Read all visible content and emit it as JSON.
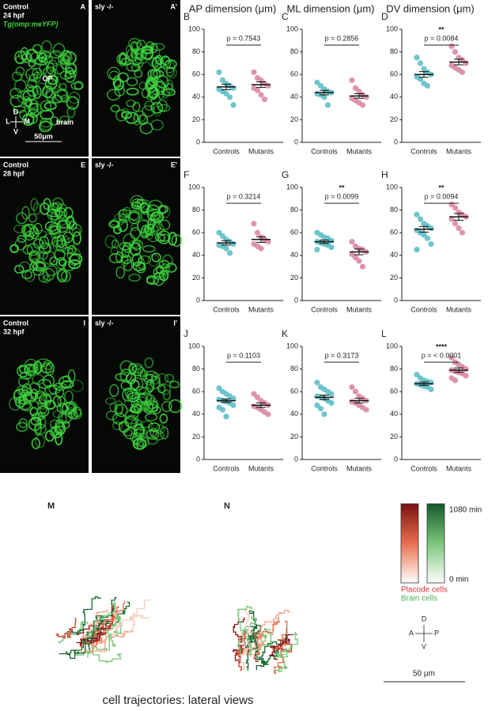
{
  "images": [
    {
      "label": "A",
      "lines": [
        "Control",
        "24 hpf",
        "Tg(omp:meYFP)"
      ],
      "annotations": [
        "OP",
        "brain",
        "D",
        "L",
        "M",
        "V",
        "50μm"
      ]
    },
    {
      "label": "A'",
      "lines": [
        "sly -/-"
      ]
    },
    {
      "label": "E",
      "lines": [
        "Control",
        "28 hpf"
      ]
    },
    {
      "label": "E'",
      "lines": [
        "sly -/-"
      ]
    },
    {
      "label": "I",
      "lines": [
        "Control",
        "32 hpf"
      ]
    },
    {
      "label": "I'",
      "lines": [
        "sly -/-"
      ]
    }
  ],
  "chart_data": [
    {
      "type": "strip",
      "panel": "B",
      "title": "AP dimension (μm)",
      "annotation": "p = 0.7543",
      "categories": [
        "Controls",
        "Mutants"
      ],
      "ylim": [
        0,
        100
      ],
      "yticks": [
        0,
        20,
        40,
        60,
        80,
        100
      ],
      "means": [
        49,
        51
      ],
      "sem": [
        2.5,
        2.5
      ],
      "series": [
        {
          "name": "Controls",
          "color": "#5fbfc6",
          "values": [
            62,
            55,
            52,
            50,
            48,
            47,
            45,
            43,
            40,
            33
          ]
        },
        {
          "name": "Mutants",
          "color": "#d98aa6",
          "values": [
            62,
            57,
            55,
            52,
            50,
            48,
            46,
            42,
            38
          ]
        }
      ]
    },
    {
      "type": "strip",
      "panel": "C",
      "title": "ML dimension (μm)",
      "annotation": "p = 0.2856",
      "categories": [
        "Controls",
        "Mutants"
      ],
      "ylim": [
        0,
        100
      ],
      "yticks": [
        0,
        20,
        40,
        60,
        80,
        100
      ],
      "means": [
        44,
        41
      ],
      "sem": [
        2,
        2
      ],
      "series": [
        {
          "name": "Controls",
          "color": "#5fbfc6",
          "values": [
            53,
            50,
            47,
            45,
            44,
            43,
            42,
            40,
            33
          ]
        },
        {
          "name": "Mutants",
          "color": "#d98aa6",
          "values": [
            55,
            48,
            45,
            42,
            40,
            39,
            37,
            35,
            33
          ]
        }
      ]
    },
    {
      "type": "strip",
      "panel": "D",
      "title": "DV dimension (μm)",
      "stars": "**",
      "annotation": "p = 0.0084",
      "categories": [
        "Controls",
        "Mutants"
      ],
      "ylim": [
        0,
        100
      ],
      "yticks": [
        0,
        20,
        40,
        60,
        80,
        100
      ],
      "means": [
        60,
        71
      ],
      "sem": [
        2.5,
        2.5
      ],
      "series": [
        {
          "name": "Controls",
          "color": "#5fbfc6",
          "values": [
            75,
            70,
            65,
            62,
            60,
            58,
            56,
            52,
            50
          ]
        },
        {
          "name": "Mutants",
          "color": "#d98aa6",
          "values": [
            85,
            80,
            75,
            73,
            70,
            68,
            66,
            64,
            62
          ]
        }
      ]
    },
    {
      "type": "strip",
      "panel": "F",
      "annotation": "p = 0.3214",
      "categories": [
        "Controls",
        "Mutants"
      ],
      "ylim": [
        0,
        100
      ],
      "yticks": [
        0,
        20,
        40,
        60,
        80,
        100
      ],
      "means": [
        51,
        54
      ],
      "sem": [
        2,
        2.5
      ],
      "series": [
        {
          "name": "Controls",
          "color": "#5fbfc6",
          "values": [
            60,
            57,
            54,
            52,
            50,
            49,
            48,
            46,
            42
          ]
        },
        {
          "name": "Mutants",
          "color": "#d98aa6",
          "values": [
            68,
            60,
            56,
            54,
            52,
            50,
            48,
            46
          ]
        }
      ]
    },
    {
      "type": "strip",
      "panel": "G",
      "stars": "**",
      "annotation": "p = 0.0099",
      "categories": [
        "Controls",
        "Mutants"
      ],
      "ylim": [
        0,
        100
      ],
      "yticks": [
        0,
        20,
        40,
        60,
        80,
        100
      ],
      "means": [
        52,
        43
      ],
      "sem": [
        1.5,
        2.5
      ],
      "series": [
        {
          "name": "Controls",
          "color": "#5fbfc6",
          "values": [
            60,
            58,
            56,
            55,
            53,
            52,
            51,
            50,
            49,
            47,
            45
          ]
        },
        {
          "name": "Mutants",
          "color": "#d98aa6",
          "values": [
            52,
            48,
            46,
            45,
            43,
            41,
            38,
            35,
            30
          ]
        }
      ]
    },
    {
      "type": "strip",
      "panel": "H",
      "stars": "**",
      "annotation": "p = 0.0094",
      "categories": [
        "Controls",
        "Mutants"
      ],
      "ylim": [
        0,
        100
      ],
      "yticks": [
        0,
        20,
        40,
        60,
        80,
        100
      ],
      "means": [
        63,
        74
      ],
      "sem": [
        2.5,
        3
      ],
      "series": [
        {
          "name": "Controls",
          "color": "#5fbfc6",
          "values": [
            76,
            72,
            68,
            66,
            64,
            62,
            60,
            58,
            55,
            50,
            45
          ]
        },
        {
          "name": "Mutants",
          "color": "#d98aa6",
          "values": [
            85,
            82,
            78,
            76,
            74,
            72,
            68,
            64,
            60
          ]
        }
      ]
    },
    {
      "type": "strip",
      "panel": "J",
      "annotation": "p = 0.1103",
      "categories": [
        "Controls",
        "Mutants"
      ],
      "ylim": [
        0,
        100
      ],
      "yticks": [
        0,
        20,
        40,
        60,
        80,
        100
      ],
      "means": [
        52,
        48
      ],
      "sem": [
        1.5,
        2
      ],
      "series": [
        {
          "name": "Controls",
          "color": "#5fbfc6",
          "values": [
            63,
            60,
            58,
            56,
            54,
            53,
            52,
            51,
            50,
            48,
            46,
            44,
            38
          ]
        },
        {
          "name": "Mutants",
          "color": "#d98aa6",
          "values": [
            58,
            55,
            52,
            50,
            48,
            47,
            46,
            44,
            42,
            40
          ]
        }
      ]
    },
    {
      "type": "strip",
      "panel": "K",
      "annotation": "p = 0.3173",
      "categories": [
        "Controls",
        "Mutants"
      ],
      "ylim": [
        0,
        100
      ],
      "yticks": [
        0,
        20,
        40,
        60,
        80,
        100
      ],
      "means": [
        55,
        52
      ],
      "sem": [
        2,
        2
      ],
      "series": [
        {
          "name": "Controls",
          "color": "#5fbfc6",
          "values": [
            68,
            64,
            62,
            60,
            58,
            56,
            55,
            54,
            52,
            50,
            48,
            45,
            40
          ]
        },
        {
          "name": "Mutants",
          "color": "#d98aa6",
          "values": [
            64,
            60,
            56,
            54,
            52,
            51,
            50,
            48,
            46,
            44
          ]
        }
      ]
    },
    {
      "type": "strip",
      "panel": "L",
      "stars": "****",
      "annotation": "p = < 0.0001",
      "categories": [
        "Controls",
        "Mutants"
      ],
      "ylim": [
        0,
        100
      ],
      "yticks": [
        0,
        20,
        40,
        60,
        80,
        100
      ],
      "means": [
        67,
        79
      ],
      "sem": [
        1.5,
        2
      ],
      "series": [
        {
          "name": "Controls",
          "color": "#5fbfc6",
          "values": [
            75,
            72,
            70,
            69,
            68,
            67,
            66,
            65,
            64,
            62
          ]
        },
        {
          "name": "Mutants",
          "color": "#d98aa6",
          "values": [
            90,
            86,
            84,
            82,
            80,
            79,
            78,
            77,
            76,
            74,
            72,
            70
          ]
        }
      ]
    }
  ],
  "trajectories": {
    "panels": [
      "M",
      "N"
    ],
    "colorbar": {
      "max_label": "1080 min",
      "min_label": "0 min"
    },
    "legend": [
      "Placode cells",
      "Brain cells"
    ],
    "axes": [
      "D",
      "A",
      "P",
      "V"
    ],
    "scale": "50 µm",
    "caption": "cell trajectories: lateral views"
  }
}
